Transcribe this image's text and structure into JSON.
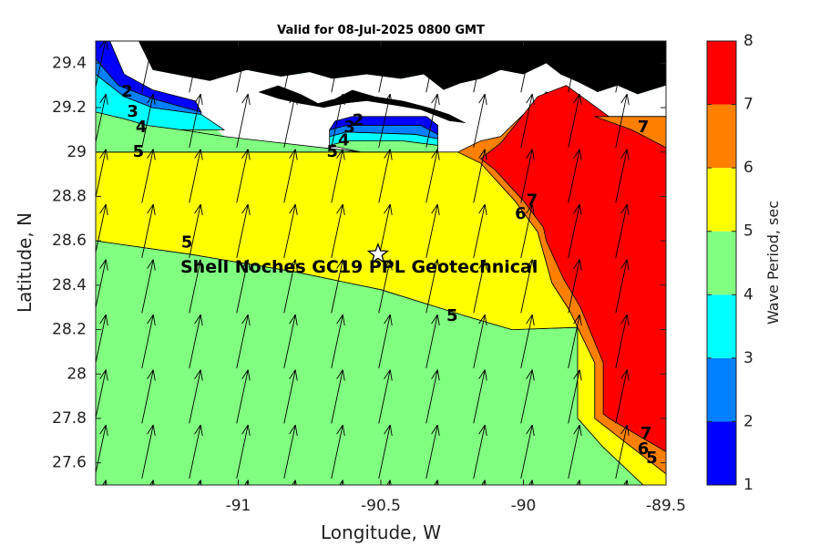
{
  "title": "Valid for 08-Jul-2025 0800 GMT",
  "xlabel": "Longitude, W",
  "ylabel": "Latitude, N",
  "colorbar_label": "Wave Period, sec",
  "x_ticks": [
    "-91",
    "-90.5",
    "-90",
    "-89.5"
  ],
  "y_ticks": [
    "29.4",
    "29.2",
    "29",
    "28.8",
    "28.6",
    "28.4",
    "28.2",
    "28",
    "27.8",
    "27.6"
  ],
  "colorbar_ticks": [
    "1",
    "2",
    "3",
    "4",
    "5",
    "6",
    "7",
    "8"
  ],
  "site": {
    "name": "Shell Noches   GC19 PPL  Geotechnical",
    "marker": "star-icon",
    "lon": -90.51,
    "lat": 28.54
  },
  "contour_labels": [
    {
      "text": "2",
      "lon": -91.39,
      "lat": 29.27
    },
    {
      "text": "3",
      "lon": -91.37,
      "lat": 29.18
    },
    {
      "text": "4",
      "lon": -91.34,
      "lat": 29.11
    },
    {
      "text": "5",
      "lon": -91.35,
      "lat": 29.0
    },
    {
      "text": "5",
      "lon": -91.18,
      "lat": 28.59
    },
    {
      "text": "5",
      "lon": -90.67,
      "lat": 29.0
    },
    {
      "text": "4",
      "lon": -90.63,
      "lat": 29.05
    },
    {
      "text": "3",
      "lon": -90.61,
      "lat": 29.11
    },
    {
      "text": "2",
      "lon": -90.58,
      "lat": 29.14
    },
    {
      "text": "5",
      "lon": -90.25,
      "lat": 28.26
    },
    {
      "text": "6",
      "lon": -90.01,
      "lat": 28.72
    },
    {
      "text": "7",
      "lon": -89.97,
      "lat": 28.78
    },
    {
      "text": "7",
      "lon": -89.58,
      "lat": 29.11
    },
    {
      "text": "7",
      "lon": -89.57,
      "lat": 27.73
    },
    {
      "text": "6",
      "lon": -89.58,
      "lat": 27.66
    },
    {
      "text": "5",
      "lon": -89.55,
      "lat": 27.62
    }
  ],
  "chart_data": {
    "type": "heatmap",
    "variable": "Wave Period, sec",
    "xlim": [
      -91.5,
      -89.5
    ],
    "ylim": [
      27.5,
      29.5
    ],
    "clim": [
      1,
      8
    ],
    "levels": [
      1,
      2,
      3,
      4,
      5,
      6,
      7,
      8
    ],
    "colors": [
      "#0000ff",
      "#0080ff",
      "#00ffff",
      "#80ff80",
      "#ffff00",
      "#ff8000",
      "#ff0000"
    ],
    "land_color": "#000000",
    "no_data_color": "#ffffff",
    "arrow_color": "#000000",
    "arrow_direction_deg_from_north": 12,
    "regions": [
      {
        "period_band": "4-5",
        "polygon": [
          [
            -91.5,
            28.6
          ],
          [
            -91.17,
            28.54
          ],
          [
            -90.8,
            28.46
          ],
          [
            -90.5,
            28.38
          ],
          [
            -90.2,
            28.26
          ],
          [
            -90.04,
            28.2
          ],
          [
            -89.81,
            28.21
          ],
          [
            -89.81,
            27.8
          ],
          [
            -89.72,
            27.67
          ],
          [
            -89.58,
            27.5
          ],
          [
            -91.5,
            27.5
          ]
        ]
      },
      {
        "period_band": "5-6",
        "polygon": [
          [
            -91.5,
            29.0
          ],
          [
            -90.57,
            29.0
          ],
          [
            -90.3,
            29.0
          ],
          [
            -90.23,
            29.0
          ],
          [
            -90.15,
            28.95
          ],
          [
            -90.03,
            28.78
          ],
          [
            -89.95,
            28.64
          ],
          [
            -89.9,
            28.41
          ],
          [
            -89.84,
            28.29
          ],
          [
            -89.75,
            28.05
          ],
          [
            -89.75,
            27.8
          ],
          [
            -89.5,
            27.55
          ],
          [
            -89.5,
            27.5
          ],
          [
            -89.58,
            27.5
          ],
          [
            -89.72,
            27.67
          ],
          [
            -89.81,
            27.8
          ],
          [
            -89.81,
            28.21
          ],
          [
            -90.04,
            28.2
          ],
          [
            -90.2,
            28.26
          ],
          [
            -90.5,
            28.38
          ],
          [
            -90.8,
            28.46
          ],
          [
            -91.17,
            28.54
          ],
          [
            -91.5,
            28.6
          ]
        ]
      },
      {
        "period_band": "6-7",
        "polygon": [
          [
            -90.23,
            29.0
          ],
          [
            -90.15,
            29.05
          ],
          [
            -90.08,
            29.07
          ],
          [
            -89.92,
            29.27
          ],
          [
            -89.5,
            29.02
          ],
          [
            -89.5,
            27.55
          ],
          [
            -89.75,
            27.8
          ],
          [
            -89.75,
            28.05
          ],
          [
            -89.84,
            28.29
          ],
          [
            -89.9,
            28.41
          ],
          [
            -89.95,
            28.64
          ],
          [
            -90.03,
            28.78
          ],
          [
            -90.15,
            28.95
          ]
        ]
      },
      {
        "period_band": "7-8",
        "polygon": [
          [
            -90.15,
            28.97
          ],
          [
            -90.08,
            29.04
          ],
          [
            -89.95,
            29.25
          ],
          [
            -89.85,
            29.3
          ],
          [
            -89.7,
            29.16
          ],
          [
            -89.5,
            29.16
          ],
          [
            -89.5,
            27.65
          ],
          [
            -89.7,
            27.8
          ],
          [
            -89.72,
            27.82
          ],
          [
            -89.72,
            28.05
          ],
          [
            -89.8,
            28.3
          ],
          [
            -89.86,
            28.43
          ],
          [
            -89.92,
            28.6
          ],
          [
            -89.93,
            28.66
          ],
          [
            -90.0,
            28.78
          ],
          [
            -90.1,
            28.92
          ]
        ]
      },
      {
        "period_band": "4-5",
        "polygon": [
          [
            -91.5,
            29.0
          ],
          [
            -91.5,
            29.18
          ],
          [
            -91.4,
            29.15
          ],
          [
            -91.32,
            29.12
          ],
          [
            -91.2,
            29.1
          ],
          [
            -91.05,
            29.07
          ],
          [
            -90.57,
            29.0
          ]
        ]
      },
      {
        "period_band": "3-4",
        "polygon": [
          [
            -91.5,
            29.18
          ],
          [
            -91.5,
            29.35
          ],
          [
            -91.4,
            29.25
          ],
          [
            -91.3,
            29.2
          ],
          [
            -91.13,
            29.17
          ],
          [
            -91.05,
            29.1
          ],
          [
            -91.2,
            29.1
          ],
          [
            -91.32,
            29.12
          ],
          [
            -91.4,
            29.15
          ]
        ]
      },
      {
        "period_band": "2-3",
        "polygon": [
          [
            -91.5,
            29.35
          ],
          [
            -91.5,
            29.42
          ],
          [
            -91.42,
            29.3
          ],
          [
            -91.3,
            29.24
          ],
          [
            -91.13,
            29.18
          ],
          [
            -91.13,
            29.17
          ],
          [
            -91.3,
            29.2
          ],
          [
            -91.4,
            29.25
          ]
        ]
      },
      {
        "period_band": "1-2",
        "polygon": [
          [
            -91.5,
            29.42
          ],
          [
            -91.5,
            29.5
          ],
          [
            -91.45,
            29.5
          ],
          [
            -91.4,
            29.35
          ],
          [
            -91.3,
            29.28
          ],
          [
            -91.15,
            29.23
          ],
          [
            -91.13,
            29.18
          ],
          [
            -91.3,
            29.24
          ],
          [
            -91.42,
            29.3
          ]
        ]
      },
      {
        "period_band": "4-5",
        "polygon": [
          [
            -90.68,
            29.03
          ],
          [
            -90.62,
            29.05
          ],
          [
            -90.42,
            29.05
          ],
          [
            -90.3,
            29.03
          ],
          [
            -90.3,
            29.0
          ],
          [
            -90.57,
            29.0
          ]
        ]
      },
      {
        "period_band": "3-4",
        "polygon": [
          [
            -90.68,
            29.07
          ],
          [
            -90.62,
            29.09
          ],
          [
            -90.38,
            29.08
          ],
          [
            -90.3,
            29.06
          ],
          [
            -90.3,
            29.03
          ],
          [
            -90.42,
            29.05
          ],
          [
            -90.62,
            29.05
          ],
          [
            -90.68,
            29.03
          ]
        ]
      },
      {
        "period_band": "2-3",
        "polygon": [
          [
            -90.68,
            29.1
          ],
          [
            -90.62,
            29.12
          ],
          [
            -90.36,
            29.12
          ],
          [
            -90.3,
            29.08
          ],
          [
            -90.3,
            29.06
          ],
          [
            -90.38,
            29.08
          ],
          [
            -90.62,
            29.09
          ],
          [
            -90.68,
            29.07
          ]
        ]
      },
      {
        "period_band": "1-2",
        "polygon": [
          [
            -90.66,
            29.14
          ],
          [
            -90.6,
            29.16
          ],
          [
            -90.34,
            29.16
          ],
          [
            -90.3,
            29.12
          ],
          [
            -90.3,
            29.08
          ],
          [
            -90.36,
            29.12
          ],
          [
            -90.62,
            29.12
          ],
          [
            -90.68,
            29.1
          ]
        ]
      },
      {
        "period_band": "6-7",
        "polygon": [
          [
            -89.75,
            29.16
          ],
          [
            -89.5,
            29.16
          ],
          [
            -89.5,
            29.02
          ],
          [
            -89.62,
            29.1
          ]
        ]
      }
    ],
    "land": [
      [
        [
          -91.35,
          29.5
        ],
        [
          -91.3,
          29.37
        ],
        [
          -91.18,
          29.34
        ],
        [
          -91.1,
          29.32
        ],
        [
          -90.97,
          29.37
        ],
        [
          -90.85,
          29.34
        ],
        [
          -90.75,
          29.36
        ],
        [
          -90.67,
          29.33
        ],
        [
          -90.55,
          29.35
        ],
        [
          -90.43,
          29.33
        ],
        [
          -90.35,
          29.35
        ],
        [
          -90.28,
          29.28
        ],
        [
          -90.22,
          29.31
        ],
        [
          -90.15,
          29.33
        ],
        [
          -90.08,
          29.37
        ],
        [
          -90.0,
          29.35
        ],
        [
          -89.92,
          29.4
        ],
        [
          -89.87,
          29.35
        ],
        [
          -89.8,
          29.31
        ],
        [
          -89.74,
          29.27
        ],
        [
          -89.67,
          29.3
        ],
        [
          -89.6,
          29.26
        ],
        [
          -89.5,
          29.3
        ],
        [
          -89.5,
          29.5
        ]
      ],
      [
        [
          -90.93,
          29.27
        ],
        [
          -90.86,
          29.3
        ],
        [
          -90.78,
          29.26
        ],
        [
          -90.72,
          29.22
        ],
        [
          -90.66,
          29.24
        ],
        [
          -90.6,
          29.28
        ],
        [
          -90.52,
          29.25
        ],
        [
          -90.42,
          29.23
        ],
        [
          -90.33,
          29.2
        ],
        [
          -90.26,
          29.17
        ],
        [
          -90.2,
          29.13
        ],
        [
          -90.26,
          29.14
        ],
        [
          -90.3,
          29.16
        ],
        [
          -90.36,
          29.19
        ],
        [
          -90.45,
          29.21
        ],
        [
          -90.55,
          29.23
        ],
        [
          -90.62,
          29.22
        ],
        [
          -90.7,
          29.2
        ],
        [
          -90.79,
          29.22
        ],
        [
          -90.86,
          29.24
        ]
      ]
    ],
    "no_data": [
      [
        [
          -91.5,
          29.5
        ],
        [
          -91.35,
          29.5
        ],
        [
          -91.3,
          29.37
        ],
        [
          -91.18,
          29.34
        ],
        [
          -91.1,
          29.32
        ],
        [
          -90.97,
          29.37
        ],
        [
          -90.85,
          29.34
        ],
        [
          -90.75,
          29.36
        ],
        [
          -90.67,
          29.33
        ],
        [
          -90.55,
          29.35
        ],
        [
          -90.43,
          29.33
        ],
        [
          -90.35,
          29.35
        ],
        [
          -90.28,
          29.28
        ],
        [
          -90.22,
          29.31
        ],
        [
          -90.15,
          29.33
        ],
        [
          -90.08,
          29.37
        ],
        [
          -90.0,
          29.35
        ],
        [
          -89.92,
          29.4
        ],
        [
          -89.87,
          29.35
        ],
        [
          -89.8,
          29.31
        ],
        [
          -89.74,
          29.27
        ],
        [
          -89.67,
          29.3
        ],
        [
          -89.6,
          29.26
        ],
        [
          -89.5,
          29.3
        ],
        [
          -89.5,
          29.16
        ],
        [
          -89.7,
          29.16
        ],
        [
          -89.85,
          29.3
        ],
        [
          -89.95,
          29.25
        ],
        [
          -90.08,
          29.04
        ],
        [
          -90.23,
          29.0
        ],
        [
          -90.3,
          29.0
        ],
        [
          -90.3,
          29.12
        ],
        [
          -90.34,
          29.16
        ],
        [
          -90.6,
          29.16
        ],
        [
          -90.66,
          29.14
        ],
        [
          -90.68,
          29.03
        ],
        [
          -90.57,
          29.0
        ],
        [
          -91.05,
          29.07
        ],
        [
          -91.13,
          29.17
        ],
        [
          -91.15,
          29.23
        ],
        [
          -91.3,
          29.28
        ],
        [
          -91.4,
          29.35
        ],
        [
          -91.45,
          29.5
        ]
      ]
    ]
  }
}
